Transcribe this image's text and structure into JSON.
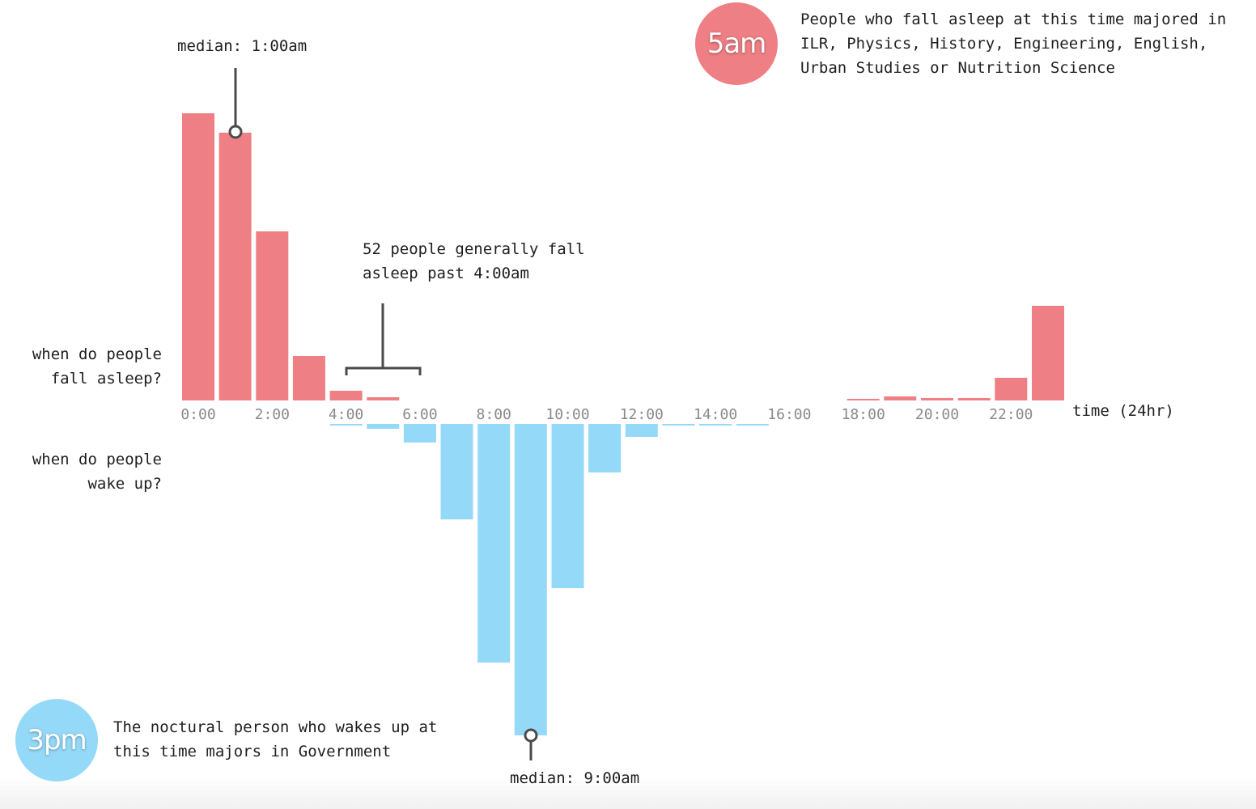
{
  "chart_data": {
    "type": "bar",
    "title": "",
    "xlabel": "time (24hr)",
    "x_ticks": [
      "0:00",
      "2:00",
      "4:00",
      "6:00",
      "8:00",
      "10:00",
      "12:00",
      "14:00",
      "16:00",
      "18:00",
      "20:00",
      "22:00"
    ],
    "categories": [
      "0:00",
      "1:00",
      "2:00",
      "3:00",
      "4:00",
      "5:00",
      "6:00",
      "7:00",
      "8:00",
      "9:00",
      "10:00",
      "11:00",
      "12:00",
      "13:00",
      "14:00",
      "15:00",
      "16:00",
      "17:00",
      "18:00",
      "19:00",
      "20:00",
      "21:00",
      "22:00",
      "23:00"
    ],
    "series": [
      {
        "name": "when do people fall asleep?",
        "color": "#ee7f84",
        "direction": "up",
        "values": [
          355,
          331,
          209,
          55,
          12,
          4,
          0,
          0,
          0,
          0,
          0,
          0,
          0,
          0,
          0,
          0,
          0,
          0,
          2,
          5,
          3,
          3,
          28,
          117
        ]
      },
      {
        "name": "when do people wake up?",
        "color": "#94d9f8",
        "direction": "down",
        "values": [
          0,
          0,
          0,
          0,
          1,
          6,
          23,
          118,
          295,
          385,
          203,
          60,
          16,
          2,
          2,
          1,
          0,
          0,
          0,
          0,
          0,
          0,
          0,
          0
        ]
      }
    ],
    "ylim": [
      -400,
      360
    ],
    "grid": false,
    "legend": "left"
  },
  "labels": {
    "asleep_line1": "when do people",
    "asleep_line2": "fall asleep?",
    "wake_line1": "when do people",
    "wake_line2": "wake up?",
    "axis_title": "time (24hr)"
  },
  "annotations": {
    "median_asleep": "median: 1:00am",
    "median_wake": "median: 9:00am",
    "late_line1": "52 people generally fall",
    "late_line2": "asleep past 4:00am"
  },
  "callout_5am": {
    "badge": "5am",
    "badge_color": "#ee7f84",
    "line1": "People who fall asleep at this time majored in",
    "line2": "ILR, Physics, History, Engineering, English,",
    "line3": "Urban Studies or Nutrition Science"
  },
  "callout_3pm": {
    "badge": "3pm",
    "badge_color": "#94d9f8",
    "line1": "The noctural person who wakes up at",
    "line2": "this time majors in Government"
  }
}
